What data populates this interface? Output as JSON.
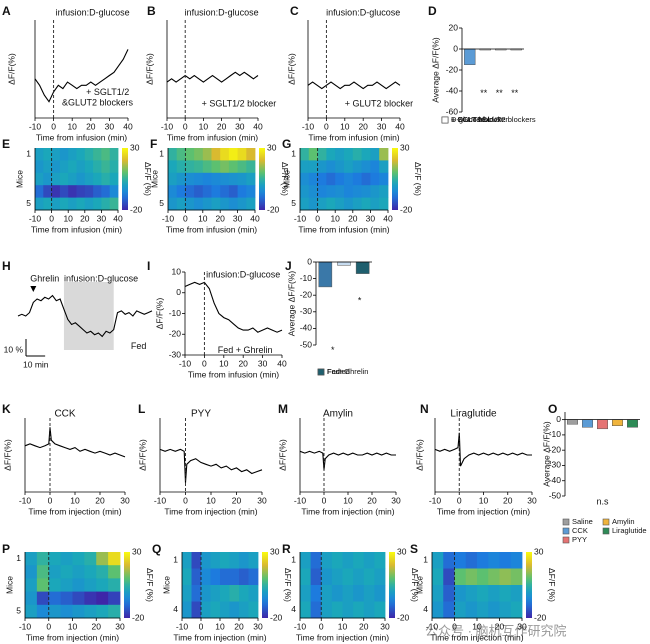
{
  "chart_data": [
    {
      "label": "A",
      "type": "line",
      "annotations": [
        "infusion:D-glucose",
        "+ SGLT1/2",
        "&GLUT2 blockers"
      ],
      "xlabel": "Time from infusion (min)",
      "ylabel": "ΔF/F(%)",
      "xlim": [
        -10,
        40
      ],
      "xticks": [
        -10,
        0,
        10,
        20,
        30,
        40
      ],
      "ylim": [
        -10,
        20
      ],
      "marker_x": 0,
      "color": "#000000",
      "x": [
        -10,
        -7.5,
        -5,
        -2.5,
        0,
        2.5,
        5,
        7.5,
        10,
        12.5,
        15,
        17.5,
        20,
        22.5,
        25,
        27.5,
        30,
        32.5,
        35,
        37.5,
        40
      ],
      "values": [
        2,
        0,
        -3,
        -5,
        -2,
        0,
        -1,
        1,
        0,
        -1,
        0,
        0,
        1,
        0,
        1,
        2,
        3,
        4,
        6,
        8,
        11
      ]
    },
    {
      "label": "B",
      "type": "line",
      "annotations": [
        "infusion:D-glucose",
        "+ SGLT1/2 blocker"
      ],
      "xlabel": "Time from infusion (min)",
      "ylabel": "ΔF/F(%)",
      "xlim": [
        -10,
        40
      ],
      "xticks": [
        -10,
        0,
        10,
        20,
        30,
        40
      ],
      "ylim": [
        -10,
        20
      ],
      "marker_x": 0,
      "color": "#000000",
      "x": [
        -10,
        -7.5,
        -5,
        -2.5,
        0,
        2.5,
        5,
        7.5,
        10,
        12.5,
        15,
        17.5,
        20,
        22.5,
        25,
        27.5,
        30,
        32.5,
        35,
        37.5,
        40
      ],
      "values": [
        1,
        2,
        1,
        2,
        3,
        2,
        3,
        2,
        1,
        2,
        3,
        2,
        1,
        2,
        3,
        4,
        3,
        4,
        3,
        2,
        3
      ]
    },
    {
      "label": "C",
      "type": "line",
      "annotations": [
        "infusion:D-glucose",
        "+ GLUT2 blocker"
      ],
      "xlabel": "Time from infusion (min)",
      "ylabel": "ΔF/F(%)",
      "xlim": [
        -10,
        40
      ],
      "xticks": [
        -10,
        0,
        10,
        20,
        30,
        40
      ],
      "ylim": [
        -10,
        20
      ],
      "marker_x": 0,
      "color": "#000000",
      "x": [
        -10,
        -7.5,
        -5,
        -2.5,
        0,
        2.5,
        5,
        7.5,
        10,
        12.5,
        15,
        17.5,
        20,
        22.5,
        25,
        27.5,
        30,
        32.5,
        35,
        37.5,
        40
      ],
      "values": [
        0,
        1,
        0,
        -1,
        0,
        1,
        0,
        -1,
        0,
        0,
        1,
        0,
        -1,
        0,
        0,
        1,
        0,
        -1,
        0,
        1,
        0
      ]
    },
    {
      "label": "D",
      "type": "bar",
      "ylabel": "Average ΔF/F(%)",
      "categories": [
        "D-glucose",
        "+ SGLT&GLUT2 blockers",
        "+ SGLT blocker",
        "+ GLUT2 blocker"
      ],
      "values": [
        -15,
        -1,
        -1,
        -1
      ],
      "colors": [
        "#5b9bd5",
        "#ffffff",
        "#ffffff",
        "#ffffff"
      ],
      "ylim": [
        -60,
        20
      ],
      "yticks": [
        20,
        0,
        -20,
        -40,
        -60
      ],
      "annotations": [
        "**",
        "**",
        "**"
      ]
    },
    {
      "label": "E",
      "type": "heatmap",
      "xlabel": "Time from infusion (min)",
      "ylabel": "Mice",
      "categories": [
        "1",
        null,
        null,
        null,
        "5"
      ],
      "xlim": [
        -10,
        40
      ],
      "xticks": [
        -10,
        0,
        10,
        20,
        30,
        40
      ],
      "marker_x": 0,
      "clim": [
        -20,
        30
      ],
      "cticks": [
        30,
        -20
      ],
      "clabel": "ΔF/F (%)",
      "rows": [
        [
          0,
          2,
          0,
          -2,
          0,
          2,
          4,
          6,
          8,
          5
        ],
        [
          -2,
          0,
          -2,
          0,
          2,
          0,
          2,
          4,
          6,
          4
        ],
        [
          0,
          -2,
          0,
          2,
          0,
          -2,
          0,
          2,
          4,
          2
        ],
        [
          -10,
          -15,
          -18,
          -15,
          -18,
          -16,
          -15,
          -12,
          -10,
          -5
        ],
        [
          0,
          2,
          0,
          2,
          0,
          2,
          0,
          2,
          4,
          6
        ]
      ]
    },
    {
      "label": "F",
      "type": "heatmap",
      "xlabel": "Time from infusion (min)",
      "ylabel": "Mice",
      "categories": [
        "1",
        null,
        null,
        null,
        "5"
      ],
      "xlim": [
        -10,
        40
      ],
      "xticks": [
        -10,
        0,
        10,
        20,
        30,
        40
      ],
      "marker_x": 0,
      "clim": [
        -20,
        30
      ],
      "cticks": [
        30,
        -20
      ],
      "clabel": "ΔF/F (%)",
      "rows": [
        [
          5,
          8,
          10,
          12,
          15,
          20,
          25,
          28,
          25,
          20
        ],
        [
          2,
          4,
          5,
          6,
          8,
          10,
          12,
          10,
          8,
          6
        ],
        [
          0,
          -2,
          -4,
          -5,
          -6,
          -5,
          -4,
          -3,
          -2,
          0
        ],
        [
          -5,
          -8,
          -10,
          -12,
          -10,
          -8,
          -10,
          -12,
          -8,
          -6
        ],
        [
          -2,
          0,
          -2,
          -4,
          -2,
          0,
          -2,
          -4,
          -2,
          0
        ]
      ]
    },
    {
      "label": "G",
      "type": "heatmap",
      "xlabel": "Time from infusion (min)",
      "ylabel": "Mice",
      "categories": [
        "1",
        null,
        null,
        null,
        "5"
      ],
      "xlim": [
        -10,
        40
      ],
      "xticks": [
        -10,
        0,
        10,
        20,
        30,
        40
      ],
      "marker_x": 0,
      "clim": [
        -20,
        30
      ],
      "cticks": [
        30,
        -20
      ],
      "clabel": "ΔF/F (%)",
      "rows": [
        [
          5,
          10,
          5,
          2,
          0,
          2,
          4,
          2,
          0,
          15
        ],
        [
          0,
          0,
          -2,
          -4,
          -2,
          0,
          -2,
          -4,
          -6,
          0
        ],
        [
          -4,
          -6,
          -8,
          -10,
          -8,
          -6,
          -8,
          -10,
          -8,
          -6
        ],
        [
          -2,
          -4,
          -6,
          -5,
          -4,
          -6,
          -5,
          -4,
          -2,
          0
        ],
        [
          0,
          -2,
          0,
          2,
          0,
          -2,
          0,
          2,
          0,
          2
        ]
      ]
    },
    {
      "label": "H",
      "type": "line",
      "annotations": [
        "Ghrelin",
        "infusion:D-glucose",
        "Fed"
      ],
      "xlim": [
        0,
        70
      ],
      "ylim": [
        -20,
        20
      ],
      "ghrelin_x": 8,
      "shade": [
        24,
        50
      ],
      "scale_bars": [
        {
          "value": 10,
          "label": "10 %"
        },
        {
          "value": 10,
          "label": "10 min"
        }
      ],
      "color": "#000000",
      "x": [
        0,
        2,
        4,
        6,
        8,
        10,
        12,
        14,
        16,
        18,
        20,
        22,
        24,
        26,
        28,
        30,
        32,
        34,
        36,
        38,
        40,
        42,
        44,
        46,
        48,
        50,
        52,
        54,
        56,
        58,
        60,
        62,
        64,
        66,
        68,
        70
      ],
      "values": [
        0,
        1,
        0,
        2,
        8,
        10,
        9,
        11,
        10,
        12,
        9,
        10,
        4,
        -2,
        -5,
        -4,
        -6,
        -8,
        -10,
        -9,
        -11,
        -10,
        -12,
        -9,
        -10,
        -8,
        2,
        3,
        1,
        2,
        0,
        3,
        2,
        1,
        2,
        3
      ]
    },
    {
      "label": "I",
      "type": "line",
      "annotations": [
        "infusion:D-glucose",
        "Fed + Ghrelin"
      ],
      "xlabel": "Time from infusion (min)",
      "ylabel": "ΔF/F(%)",
      "xlim": [
        -10,
        40
      ],
      "xticks": [
        -10,
        0,
        10,
        20,
        30,
        40
      ],
      "ylim": [
        -30,
        10
      ],
      "yticks": [
        10,
        0,
        -10,
        -20,
        -30
      ],
      "marker_x": 0,
      "color": "#000000",
      "x": [
        -10,
        -7.5,
        -5,
        -2.5,
        0,
        2.5,
        5,
        7.5,
        10,
        12.5,
        15,
        17.5,
        20,
        22.5,
        25,
        27.5,
        30,
        32.5,
        35,
        37.5,
        40
      ],
      "values": [
        3,
        4,
        5,
        4,
        5,
        2,
        -5,
        -10,
        -12,
        -13,
        -15,
        -17,
        -18,
        -18,
        -17,
        -19,
        -18,
        -17,
        -18,
        -19,
        -18
      ]
    },
    {
      "label": "J",
      "type": "bar",
      "ylabel": "Average ΔF/F(%)",
      "categories": [
        "Fasted",
        "Fed",
        "Fed+Ghrelin"
      ],
      "values": [
        -15,
        -2,
        -7
      ],
      "colors": [
        "#3a78a8",
        "#c6dbef",
        "#1f5f6e"
      ],
      "ylim": [
        -50,
        0
      ],
      "yticks": [
        0,
        -10,
        -20,
        -30,
        -40,
        -50
      ],
      "annotations": [
        "*",
        "*"
      ]
    },
    {
      "label": "K",
      "type": "line",
      "title": "CCK",
      "xlabel": "Time from injection (min)",
      "ylabel": "ΔF/F(%)",
      "xlim": [
        -10,
        30
      ],
      "xticks": [
        -10,
        0,
        10,
        20,
        30
      ],
      "ylim": [
        -20,
        20
      ],
      "marker_x": 0,
      "color": "#000000",
      "x": [
        -10,
        -8,
        -6,
        -4,
        -2,
        -0.5,
        0,
        0.5,
        2,
        4,
        6,
        8,
        10,
        12,
        14,
        16,
        18,
        20,
        22,
        24,
        26,
        28,
        30
      ],
      "values": [
        5,
        6,
        5,
        4,
        5,
        6,
        15,
        8,
        6,
        5,
        4,
        3,
        4,
        2,
        3,
        2,
        1,
        2,
        1,
        0,
        1,
        0,
        -1
      ]
    },
    {
      "label": "L",
      "type": "line",
      "title": "PYY",
      "xlabel": "Time from injection (min)",
      "ylabel": "ΔF/F(%)",
      "xlim": [
        -10,
        30
      ],
      "xticks": [
        -10,
        0,
        10,
        20,
        30
      ],
      "ylim": [
        -20,
        20
      ],
      "marker_x": 0,
      "color": "#000000",
      "x": [
        -10,
        -8,
        -6,
        -4,
        -2,
        -0.5,
        0,
        0.5,
        2,
        4,
        6,
        8,
        10,
        12,
        14,
        16,
        18,
        20,
        22,
        24,
        26,
        28,
        30
      ],
      "values": [
        3,
        2,
        3,
        2,
        3,
        2,
        -15,
        -5,
        -3,
        -2,
        -4,
        -5,
        -6,
        -5,
        -7,
        -6,
        -8,
        -7,
        -9,
        -8,
        -10,
        -9,
        -8
      ]
    },
    {
      "label": "M",
      "type": "line",
      "title": "Amylin",
      "xlabel": "Time from injection (min)",
      "ylabel": "ΔF/F(%)",
      "xlim": [
        -10,
        30
      ],
      "xticks": [
        -10,
        0,
        10,
        20,
        30
      ],
      "ylim": [
        -20,
        20
      ],
      "marker_x": 0,
      "color": "#000000",
      "x": [
        -10,
        -8,
        -6,
        -4,
        -2,
        -0.5,
        0,
        0.5,
        2,
        4,
        6,
        8,
        10,
        12,
        14,
        16,
        18,
        20,
        22,
        24,
        26,
        28,
        30
      ],
      "values": [
        2,
        1,
        2,
        1,
        2,
        1,
        -8,
        -2,
        0,
        1,
        0,
        1,
        0,
        1,
        0,
        0,
        1,
        0,
        1,
        0,
        1,
        0,
        0
      ]
    },
    {
      "label": "N",
      "type": "line",
      "title": "Liraglutide",
      "xlabel": "Time from injection (min)",
      "ylabel": "ΔF/F(%)",
      "xlim": [
        -10,
        30
      ],
      "xticks": [
        -10,
        0,
        10,
        20,
        30
      ],
      "ylim": [
        -20,
        20
      ],
      "marker_x": 0,
      "color": "#000000",
      "x": [
        -10,
        -8,
        -6,
        -4,
        -2,
        -0.5,
        0,
        0.5,
        2,
        4,
        6,
        8,
        10,
        12,
        14,
        16,
        18,
        20,
        22,
        24,
        26,
        28,
        30
      ],
      "values": [
        3,
        2,
        3,
        2,
        3,
        4,
        12,
        -6,
        -2,
        0,
        1,
        0,
        1,
        0,
        1,
        0,
        1,
        0,
        1,
        0,
        1,
        0,
        0
      ]
    },
    {
      "label": "O",
      "type": "bar",
      "ylabel": "Average ΔF/F(%)",
      "categories": [
        "Saline",
        "CCK",
        "PYY",
        "Amylin",
        "Liraglutide"
      ],
      "values": [
        -3,
        -5,
        -6,
        -4,
        -5
      ],
      "colors": [
        "#9e9e9e",
        "#5b9bd5",
        "#e57373",
        "#f0b43c",
        "#2e8b57"
      ],
      "ylim": [
        -50,
        5
      ],
      "yticks": [
        0,
        -10,
        -20,
        -30,
        -40,
        -50
      ],
      "annotations": [
        "n.s"
      ]
    },
    {
      "label": "P",
      "type": "heatmap",
      "xlabel": "Time from injection (min)",
      "ylabel": "Mice",
      "categories": [
        "1",
        null,
        null,
        null,
        "5"
      ],
      "xlim": [
        -10,
        30
      ],
      "xticks": [
        -10,
        0,
        10,
        20,
        30
      ],
      "marker_x": 0,
      "clim": [
        -20,
        30
      ],
      "cticks": [
        30,
        -20
      ],
      "clabel": "ΔF/F (%)",
      "rows": [
        [
          0,
          5,
          2,
          0,
          2,
          4,
          15,
          25
        ],
        [
          -2,
          8,
          0,
          2,
          0,
          2,
          4,
          10
        ],
        [
          0,
          10,
          2,
          0,
          -2,
          0,
          2,
          4
        ],
        [
          -2,
          -15,
          -10,
          -12,
          -15,
          -18,
          -20,
          -16
        ],
        [
          0,
          -5,
          -2,
          -4,
          -2,
          0,
          2,
          4
        ]
      ]
    },
    {
      "label": "Q",
      "type": "heatmap",
      "xlabel": "Time from injection (min)",
      "ylabel": "Mice",
      "categories": [
        "1",
        null,
        null,
        "4"
      ],
      "xlim": [
        -10,
        30
      ],
      "xticks": [
        -10,
        0,
        10,
        20,
        30
      ],
      "marker_x": 0,
      "clim": [
        -20,
        30
      ],
      "cticks": [
        30,
        -20
      ],
      "clabel": "ΔF/F (%)",
      "rows": [
        [
          0,
          -15,
          -2,
          0,
          2,
          0,
          -2,
          0
        ],
        [
          2,
          -12,
          -5,
          -8,
          -10,
          -10,
          -12,
          -10
        ],
        [
          0,
          -10,
          -2,
          0,
          2,
          4,
          2,
          0
        ],
        [
          -2,
          -15,
          0,
          2,
          0,
          -2,
          0,
          2
        ]
      ]
    },
    {
      "label": "R",
      "type": "heatmap",
      "xlabel": "Time from injection (min)",
      "categories": [
        "1",
        null,
        null,
        "4"
      ],
      "xlim": [
        -10,
        30
      ],
      "xticks": [
        -10,
        0,
        10,
        20,
        30
      ],
      "marker_x": 0,
      "clim": [
        -20,
        30
      ],
      "cticks": [
        30,
        -20
      ],
      "clabel": "ΔF/F (%)",
      "rows": [
        [
          0,
          -10,
          0,
          2,
          0,
          2,
          0,
          2
        ],
        [
          2,
          -12,
          -2,
          0,
          2,
          0,
          2,
          0
        ],
        [
          0,
          -8,
          0,
          -2,
          0,
          -2,
          0,
          -2
        ],
        [
          2,
          -10,
          0,
          2,
          0,
          2,
          0,
          2
        ]
      ]
    },
    {
      "label": "S",
      "type": "heatmap",
      "xlabel": "Time from injection (min)",
      "ylabel": "Mice",
      "categories": [
        "1",
        null,
        null,
        "4"
      ],
      "xlim": [
        -10,
        30
      ],
      "xticks": [
        -10,
        0,
        10,
        20,
        30
      ],
      "marker_x": 0,
      "clim": [
        -20,
        30
      ],
      "cticks": [
        30,
        -20
      ],
      "clabel": "ΔF/F (%)",
      "rows": [
        [
          0,
          -10,
          -8,
          -10,
          -8,
          -6,
          -8,
          -6
        ],
        [
          2,
          -15,
          10,
          12,
          10,
          12,
          14,
          12
        ],
        [
          0,
          -12,
          -2,
          0,
          2,
          0,
          2,
          0
        ],
        [
          -2,
          -10,
          0,
          -2,
          0,
          -2,
          0,
          2
        ]
      ]
    }
  ],
  "watermark": "公众号 · 脑机互作研究院"
}
